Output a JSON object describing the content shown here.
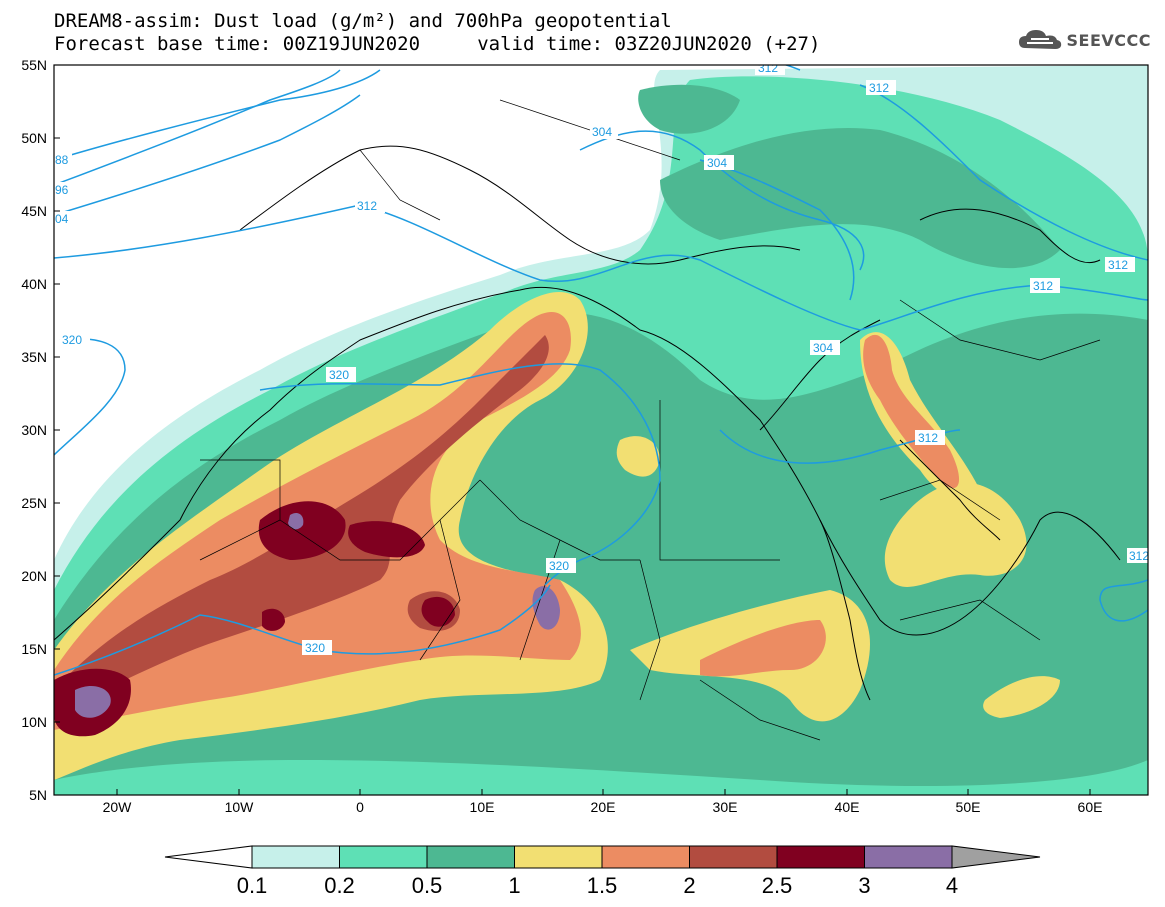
{
  "title": {
    "line1": "DREAM8-assim: Dust load (g/m²) and 700hPa geopotential",
    "line2": "Forecast base time: 00Z19JUN2020     valid time: 03Z20JUN2020 (+27)"
  },
  "logo": {
    "text": "SEEVCCC",
    "icon": "cloud-icon"
  },
  "axes": {
    "lon_labels": [
      "20W",
      "10W",
      "0",
      "10E",
      "20E",
      "30E",
      "40E",
      "50E",
      "60E"
    ],
    "lat_labels": [
      "55N",
      "50N",
      "45N",
      "40N",
      "35N",
      "30N",
      "25N",
      "20N",
      "15N",
      "10N",
      "5N"
    ]
  },
  "contour_labels": [
    "312",
    "304",
    "304",
    "312",
    "312",
    "312",
    "304",
    "312",
    "320",
    "320",
    "320",
    "320",
    "88",
    "96",
    "04",
    "312",
    "312"
  ],
  "colorbar": {
    "labels": [
      "0.1",
      "0.2",
      "0.5",
      "1",
      "1.5",
      "2",
      "2.5",
      "3",
      "4"
    ],
    "colors": [
      "#ffffff",
      "#c6f0ea",
      "#5ee0b5",
      "#4db892",
      "#f2df72",
      "#ec8c62",
      "#b24c40",
      "#800020",
      "#8a6ea6",
      "#a0a0a0"
    ]
  },
  "colors": {
    "ocean": "#ffffff",
    "contour": "#1e9be0",
    "border": "#000000"
  }
}
